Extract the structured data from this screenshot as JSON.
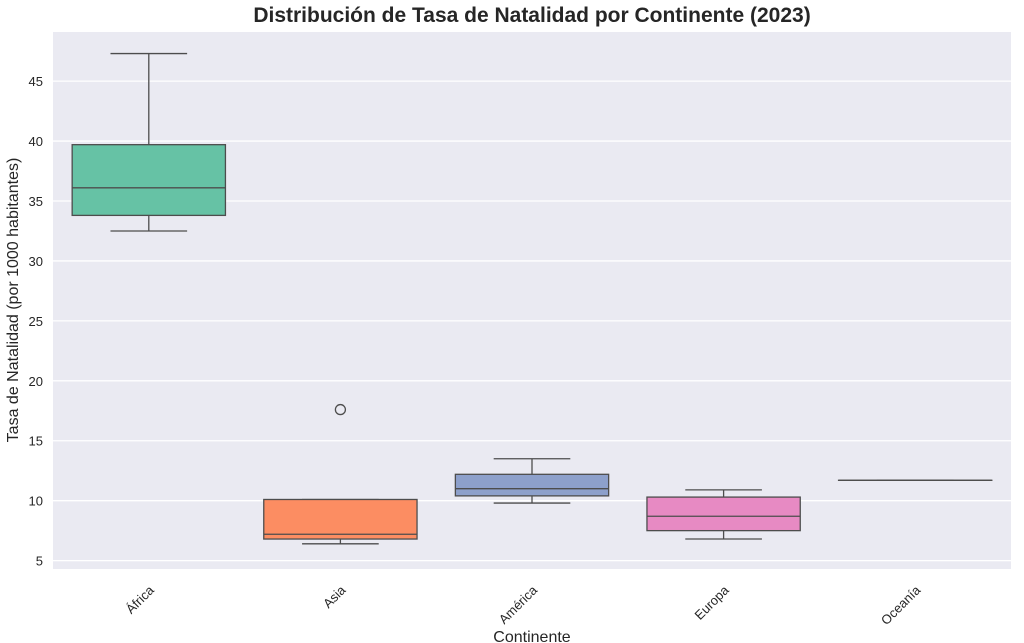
{
  "chart_data": {
    "type": "box",
    "title": "Distribución de Tasa de Natalidad por Continente (2023)",
    "xlabel": "Continente",
    "ylabel": "Tasa de Natalidad (por 1000 habitantes)",
    "ylim": [
      4.3,
      49.1
    ],
    "yticks": [
      5,
      10,
      15,
      20,
      25,
      30,
      35,
      40,
      45
    ],
    "grid": true,
    "background": "#eaeaf2",
    "grid_color": "#ffffff",
    "line_color": "#4d4d4d",
    "categories": [
      "África",
      "Asia",
      "América",
      "Europa",
      "Oceanía"
    ],
    "boxes": [
      {
        "category": "África",
        "whisker_low": 32.5,
        "q1": 33.8,
        "median": 36.1,
        "q3": 39.7,
        "whisker_high": 47.3,
        "outliers": [],
        "color": "#66c2a5"
      },
      {
        "category": "Asia",
        "whisker_low": 6.4,
        "q1": 6.8,
        "median": 7.2,
        "q3": 10.1,
        "whisker_high": 10.1,
        "outliers": [
          17.6
        ],
        "color": "#fc8d62"
      },
      {
        "category": "América",
        "whisker_low": 9.8,
        "q1": 10.4,
        "median": 11.0,
        "q3": 12.2,
        "whisker_high": 13.5,
        "outliers": [],
        "color": "#8da0cb"
      },
      {
        "category": "Europa",
        "whisker_low": 6.8,
        "q1": 7.5,
        "median": 8.7,
        "q3": 10.3,
        "whisker_high": 10.9,
        "outliers": [],
        "color": "#e78ac3"
      },
      {
        "category": "Oceanía",
        "whisker_low": 11.7,
        "q1": 11.7,
        "median": 11.7,
        "q3": 11.7,
        "whisker_high": 11.7,
        "outliers": [],
        "color": "#a6d854"
      }
    ]
  }
}
